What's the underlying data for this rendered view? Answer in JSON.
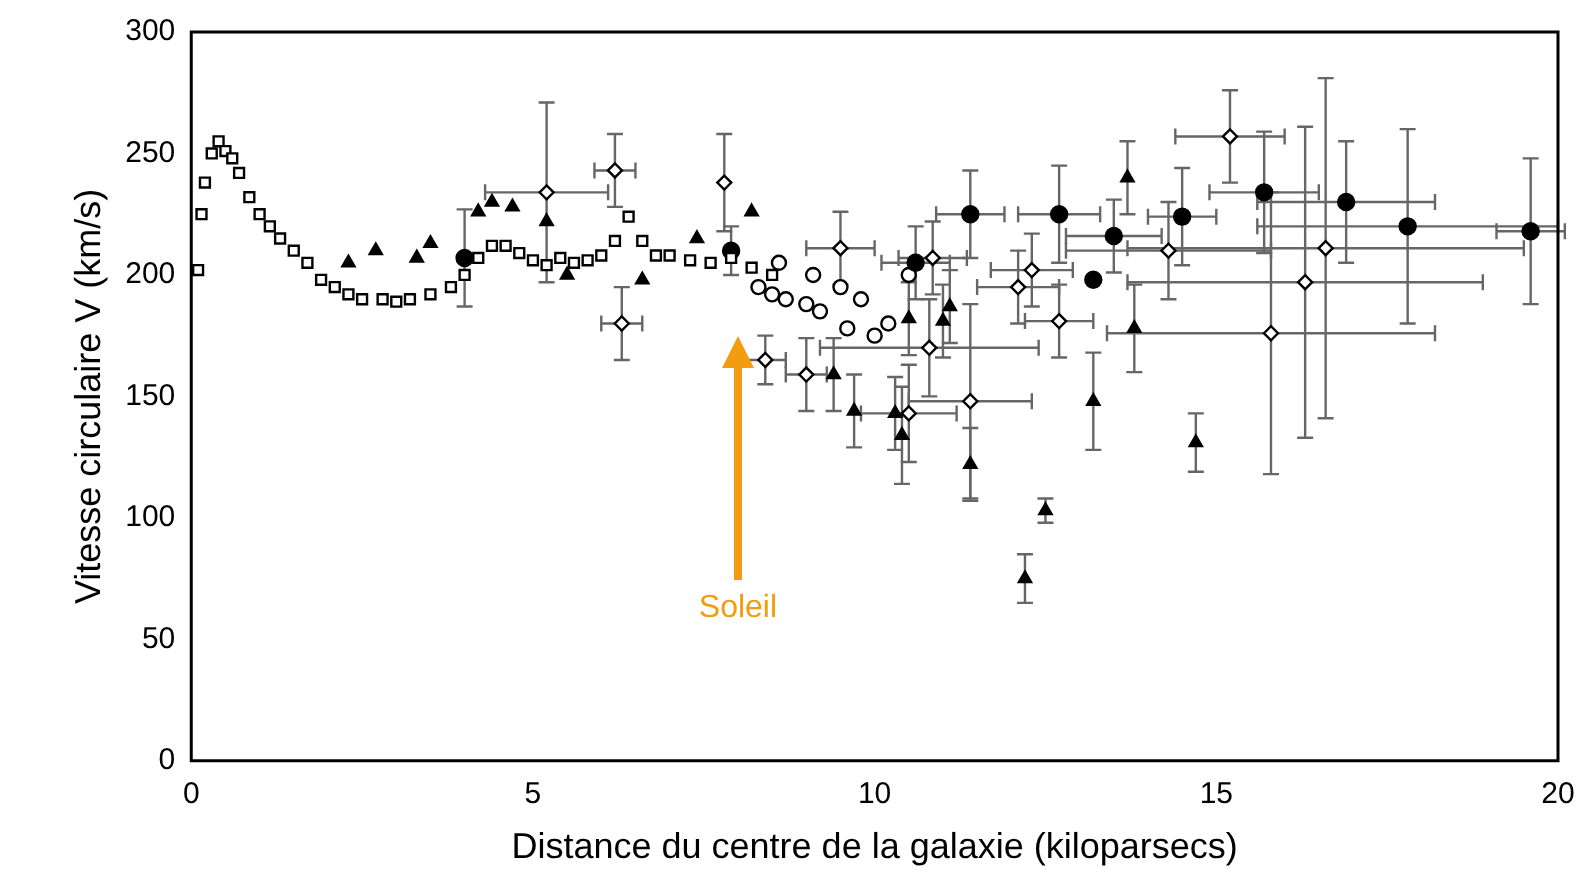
{
  "chart_data": {
    "type": "scatter",
    "xlabel": "Distance du centre de la galaxie (kiloparsecs)",
    "ylabel": "Vitesse circulaire V (km/s)",
    "xlim": [
      0,
      20
    ],
    "xticks": [
      0,
      5,
      10,
      15,
      20
    ],
    "ylim": [
      0,
      300
    ],
    "yticks": [
      0,
      50,
      100,
      150,
      200,
      250,
      300
    ],
    "grid": false,
    "legend": false,
    "series": [
      {
        "color": "#ffffff",
        "marker": "square",
        "x": [
          0.1,
          0.15,
          0.2,
          0.3,
          0.4,
          0.5,
          0.6,
          0.7,
          0.85,
          1,
          1.15,
          1.3,
          1.5,
          1.7,
          1.9,
          2.1,
          2.3,
          2.5,
          2.8,
          3,
          3.2,
          3.5,
          3.8,
          4,
          4.2,
          4.4,
          4.6,
          4.8,
          5,
          5.2,
          5.4,
          5.6,
          5.8,
          6,
          6.2,
          6.4,
          6.6,
          6.8,
          7,
          7.3,
          7.6,
          7.9,
          8.2,
          8.5
        ],
        "values": [
          202,
          225,
          238,
          250,
          255,
          251,
          248,
          242,
          232,
          225,
          220,
          215,
          210,
          205,
          198,
          195,
          192,
          190,
          190,
          189,
          190,
          192,
          195,
          200,
          207,
          212,
          212,
          209,
          206,
          204,
          207,
          205,
          206,
          208,
          214,
          224,
          214,
          208,
          208,
          206,
          205,
          207,
          203,
          200
        ]
      },
      {
        "color": "#000000",
        "marker": "triangle",
        "x": [
          2.3,
          2.7,
          3.3,
          3.5,
          4.2,
          4.4,
          4.7,
          5.2,
          5.5,
          6.6,
          7.4,
          8.2
        ],
        "values": [
          205,
          210,
          207,
          213,
          226,
          230,
          228,
          222,
          200,
          198,
          215,
          226
        ]
      },
      {
        "color": "#000000",
        "marker": "circle",
        "x": [
          4.0,
          7.9,
          10.6,
          11.4,
          12.7,
          13.5,
          13.2,
          14.5,
          15.7,
          16.9,
          17.8,
          19.6
        ],
        "values": [
          207,
          210,
          205,
          225,
          225,
          216,
          198,
          224,
          234,
          230,
          220,
          218
        ],
        "errors": [
          20,
          10,
          15,
          18,
          20,
          15,
          null,
          20,
          25,
          25,
          40,
          30
        ],
        "xerrors": [
          null,
          null,
          0.5,
          0.5,
          0.6,
          0.7,
          null,
          0.5,
          0.8,
          1.3,
          2.2,
          0.5
        ]
      },
      {
        "color": "#000000",
        "marker": "triangle",
        "x": [
          9.4,
          9.7,
          10.3,
          10.4,
          10.5,
          11.0,
          11.1,
          11.4,
          12.2,
          12.5,
          13.2,
          13.7,
          13.8,
          14.7
        ],
        "values": [
          159,
          144,
          143,
          134,
          182,
          181,
          187,
          122,
          75,
          103,
          148,
          240,
          178,
          131
        ],
        "errors": [
          15,
          15,
          15,
          20,
          15,
          15,
          15,
          15,
          10,
          5,
          20,
          15,
          18,
          12
        ]
      },
      {
        "color": "#ffffff",
        "marker": "diamond",
        "x": [
          5.2,
          6.2,
          6.3,
          7.8,
          8.4,
          9.0,
          9.5,
          10.5,
          10.85,
          10.8,
          11.4,
          12.1,
          12.3,
          12.7,
          14.3,
          15.2,
          15.8,
          16.3,
          16.6
        ],
        "values": [
          234,
          243,
          180,
          238,
          165,
          159,
          211,
          143,
          207,
          170,
          148,
          195,
          202,
          181,
          210,
          257,
          176,
          197,
          211
        ],
        "errors": [
          37,
          15,
          15,
          20,
          10,
          15,
          15,
          20,
          15,
          20,
          40,
          15,
          15,
          15,
          20,
          19,
          58,
          64,
          70
        ],
        "xerrors": [
          0.9,
          0.3,
          0.3,
          null,
          0.3,
          0.3,
          0.5,
          0.7,
          0.5,
          1.6,
          0.9,
          0.6,
          0.6,
          0.5,
          1.5,
          0.8,
          2.4,
          2.6,
          2.9
        ]
      },
      {
        "color": "#ffffff",
        "marker": "circle",
        "x": [
          8.3,
          8.5,
          8.6,
          8.7,
          9.0,
          9.1,
          9.2,
          9.5,
          9.6,
          9.8,
          10.0,
          10.2,
          10.5
        ],
        "values": [
          195,
          192,
          205,
          190,
          188,
          200,
          185,
          195,
          178,
          190,
          175,
          180,
          200
        ]
      }
    ],
    "annotations": [
      "Soleil"
    ]
  }
}
